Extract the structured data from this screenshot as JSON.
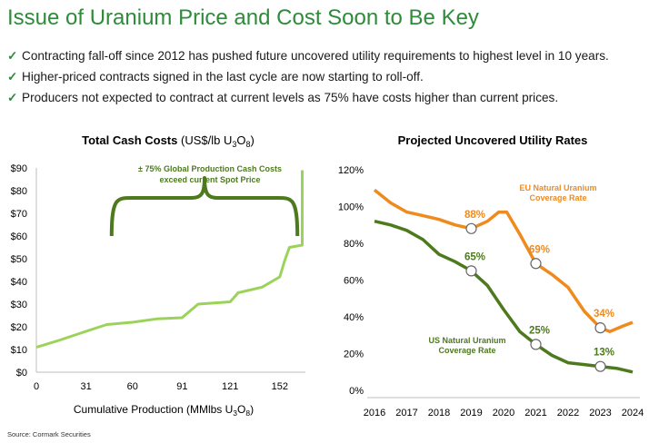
{
  "title": "Issue of Uranium Price and Cost Soon to Be Key",
  "bullets": [
    "Contracting fall-off since 2012 has pushed future uncovered utility requirements to highest level in 10 years.",
    "Higher-priced contracts signed in the last cycle are now starting to roll-off.",
    "Producers not expected to contract at current levels as 75% have costs higher than current prices."
  ],
  "source": "Source: Cormark Securities",
  "colors": {
    "title": "#2e8b3a",
    "light_green": "#9bd35a",
    "dark_green": "#4d7a1d",
    "orange": "#f08a1f"
  },
  "chart_data": [
    {
      "type": "line",
      "title_main": "Total Cash Costs",
      "title_unit": "(US$/lb U",
      "title_sub1": "3",
      "title_o": "O",
      "title_sub2": "8",
      "title_close": ")",
      "xlabel": "Cumulative Production (MMlbs U",
      "xlabel_sub1": "3",
      "xlabel_o": "O",
      "xlabel_sub2": "8",
      "xlabel_close": ")",
      "xlim": [
        0,
        168
      ],
      "ylim": [
        0,
        90
      ],
      "x_ticks": [
        0,
        31,
        60,
        91,
        121,
        152
      ],
      "y_ticks": [
        0,
        10,
        20,
        30,
        40,
        50,
        60,
        70,
        80,
        90
      ],
      "y_tick_labels": [
        "$0",
        "$10",
        "$20",
        "$30",
        "$40",
        "$50",
        "$60",
        "$70",
        "$80",
        "$90"
      ],
      "series": [
        {
          "x": [
            0,
            14,
            31,
            44,
            60,
            75,
            91,
            101,
            121,
            126,
            141,
            152,
            155,
            158,
            166,
            166
          ],
          "y": [
            11,
            14,
            18,
            21,
            22,
            23.5,
            24,
            30,
            31,
            35,
            37.5,
            42,
            49,
            55,
            56,
            89
          ]
        }
      ],
      "annotation_line1": "± 75% Global Production Cash Costs",
      "annotation_line2": "exceed current Spot Price",
      "brace_range": [
        47,
        163
      ],
      "brace_y": [
        60,
        78
      ]
    },
    {
      "type": "line",
      "title": "Projected Uncovered Utility Rates",
      "categories": [
        "2016",
        "2017",
        "2018",
        "2019",
        "2020",
        "2021",
        "2022",
        "2023",
        "2024"
      ],
      "ylim": [
        0,
        120
      ],
      "y_ticks": [
        0,
        20,
        40,
        60,
        80,
        100,
        120
      ],
      "y_tick_labels": [
        "0%",
        "20%",
        "40%",
        "60%",
        "80%",
        "100%",
        "120%"
      ],
      "series": [
        {
          "name": "EU Natural Uranium Coverage Rate",
          "name_line1": "EU Natural Uranium",
          "name_line2": "Coverage Rate",
          "x": [
            2016,
            2016.5,
            2017,
            2017.5,
            2018,
            2018.5,
            2019,
            2019.5,
            2019.85,
            2020.1,
            2020.5,
            2021,
            2021.5,
            2022,
            2022.5,
            2023,
            2023.3,
            2023.7,
            2024
          ],
          "y": [
            109,
            102,
            97,
            95,
            93,
            90,
            88,
            92,
            97,
            97,
            85,
            69,
            63,
            56,
            43,
            34,
            32,
            35,
            37
          ]
        },
        {
          "name": "US Natural Uranium Coverage Rate",
          "name_line1": "US Natural Uranium",
          "name_line2": "Coverage Rate",
          "x": [
            2016,
            2016.5,
            2017,
            2017.5,
            2018,
            2018.5,
            2019,
            2019.5,
            2020,
            2020.5,
            2021,
            2021.5,
            2022,
            2022.5,
            2023,
            2023.5,
            2024
          ],
          "y": [
            92,
            90,
            87,
            82,
            74,
            70,
            65,
            57,
            44,
            32,
            25,
            19,
            15,
            14,
            13,
            12,
            10
          ]
        }
      ],
      "markers": [
        {
          "series": 0,
          "x": 2019,
          "y": 88,
          "label": "88%"
        },
        {
          "series": 0,
          "x": 2021,
          "y": 69,
          "label": "69%"
        },
        {
          "series": 0,
          "x": 2023,
          "y": 34,
          "label": "34%"
        },
        {
          "series": 1,
          "x": 2019,
          "y": 65,
          "label": "65%"
        },
        {
          "series": 1,
          "x": 2021,
          "y": 25,
          "label": "25%"
        },
        {
          "series": 1,
          "x": 2023,
          "y": 13,
          "label": "13%"
        }
      ]
    }
  ]
}
